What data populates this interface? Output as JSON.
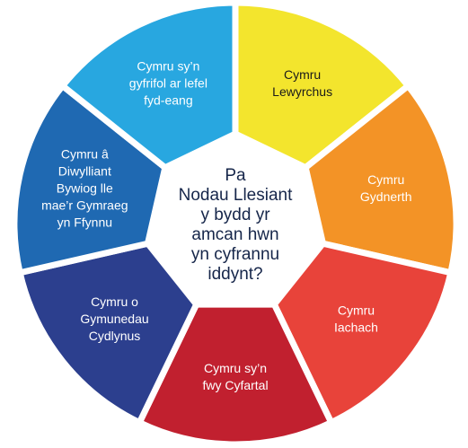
{
  "center": {
    "lines": [
      "Pa",
      "Nodau Llesiant",
      "y bydd yr",
      "amcan hwn",
      "yn cyfrannu",
      "iddynt?"
    ]
  },
  "segments": [
    {
      "lines": [
        "Cymru",
        "Lewyrchus"
      ],
      "color": "#f3e52d",
      "text_color": "#1a1a1a"
    },
    {
      "lines": [
        "Cymru",
        "Gydnerth"
      ],
      "color": "#f39326",
      "text_color": "#ffffff"
    },
    {
      "lines": [
        "Cymru",
        "Iachach"
      ],
      "color": "#e8433a",
      "text_color": "#ffffff"
    },
    {
      "lines": [
        "Cymru sy’n",
        "fwy Cyfartal"
      ],
      "color": "#c1202f",
      "text_color": "#ffffff"
    },
    {
      "lines": [
        "Cymru o",
        "Gymunedau",
        "Cydlynus"
      ],
      "color": "#2c3f8e",
      "text_color": "#ffffff"
    },
    {
      "lines": [
        "Cymru â",
        "Diwylliant",
        "Bywiog lle",
        "mae’r Gymraeg",
        "yn Ffynnu"
      ],
      "color": "#1f69b2",
      "text_color": "#ffffff"
    },
    {
      "lines": [
        "Cymru sy’n",
        "gyfrifol ar lefel",
        "fyd-eang"
      ],
      "color": "#28a7e0",
      "text_color": "#ffffff"
    }
  ]
}
